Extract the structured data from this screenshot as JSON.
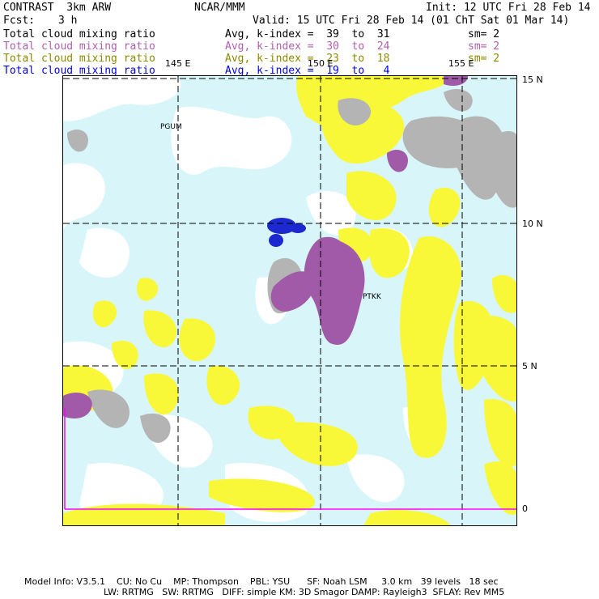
{
  "header": {
    "model": "CONTRAST  3km ARW",
    "org": "NCAR/MMM",
    "init": "Init: 12 UTC Fri 28 Feb 14",
    "fcst_label": "Fcst:",
    "fcst_value": "3 h",
    "valid": "Valid: 15 UTC Fri 28 Feb 14 (01 ChT Sat 01 Mar 14)"
  },
  "fields": [
    {
      "name": "Total cloud mixing ratio",
      "avg": "Avg, k-index =  39  to  31",
      "sm": "sm= 2",
      "color": "#000000"
    },
    {
      "name": "Total cloud mixing ratio",
      "avg": "Avg, k-index =  30  to  24",
      "sm": "sm= 2",
      "color": "#b05fb0"
    },
    {
      "name": "Total cloud mixing ratio",
      "avg": "Avg, k-index =  23  to  18",
      "sm": "sm= 2",
      "color": "#8a8a00"
    },
    {
      "name": "Total cloud mixing ratio",
      "avg": "Avg, k-index =  19  to   4",
      "sm": "",
      "color": "#0000ee"
    }
  ],
  "map": {
    "lon_labels": [
      "145 E",
      "150 E",
      "155 E"
    ],
    "lat_labels": [
      "15 N",
      "10 N",
      "5 N",
      "0"
    ],
    "places": [
      "PGUM",
      "PTKK"
    ],
    "colors": {
      "ocean": "#d8f6fa",
      "low_cloud": "#f8f838",
      "mid_cloud": "#a05aa8",
      "high_cloud": "#b4b4b4",
      "deep_cloud": "#1c28d0",
      "white_cloud": "#ffffff",
      "grid": "#000000",
      "boundary": "#ff00ff"
    }
  },
  "footer": {
    "line1": "Model Info: V3.5.1    CU: No Cu    MP: Thompson    PBL: YSU      SF: Noah LSM     3.0 km   39 levels   18 sec",
    "line2": "LW: RRTMG   SW: RRTMG   DIFF: simple KM: 3D Smagor DAMP: Rayleigh3  SFLAY: Rev MM5"
  }
}
